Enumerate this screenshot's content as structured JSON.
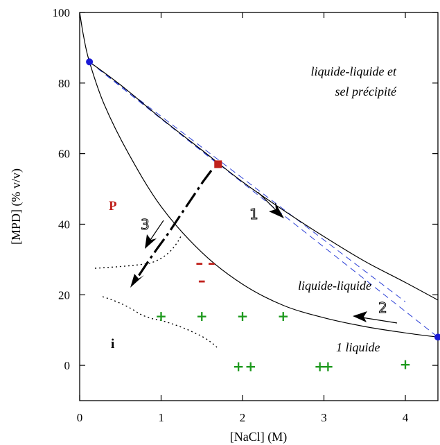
{
  "chart_data": {
    "type": "scatter",
    "xlabel": "[NaCl] (M)",
    "ylabel": "[MPD] (% v/v)",
    "xlim": [
      0,
      4.4
    ],
    "ylim": [
      -10,
      100
    ],
    "x_ticks": [
      "0",
      "1",
      "2",
      "3",
      "4"
    ],
    "y_ticks": [
      "0",
      "20",
      "40",
      "60",
      "80",
      "100"
    ],
    "curves": {
      "upper_binodal": [
        [
          0.12,
          86
        ],
        [
          0.5,
          79.5
        ],
        [
          1.0,
          70
        ],
        [
          1.5,
          61
        ],
        [
          2.0,
          52
        ],
        [
          2.5,
          44
        ],
        [
          3.0,
          36.5
        ],
        [
          3.5,
          29.5
        ],
        [
          4.0,
          23.5
        ],
        [
          4.4,
          18.5
        ]
      ],
      "lower_binodal": [
        [
          0,
          100
        ],
        [
          0.05,
          93
        ],
        [
          0.12,
          86
        ],
        [
          0.3,
          74
        ],
        [
          0.6,
          60
        ],
        [
          1.0,
          45
        ],
        [
          1.5,
          32
        ],
        [
          2.0,
          23
        ],
        [
          2.5,
          17
        ],
        [
          3.0,
          13.5
        ],
        [
          3.5,
          11
        ],
        [
          4.0,
          9.2
        ],
        [
          4.4,
          8
        ]
      ],
      "tie_lines": [
        [
          [
            0.12,
            86
          ],
          [
            4.4,
            8
          ]
        ],
        [
          [
            0.12,
            86
          ],
          [
            1.7,
            57
          ]
        ],
        [
          [
            0.12,
            86
          ],
          [
            4.0,
            18
          ]
        ]
      ]
    },
    "points": {
      "blue_circles": [
        [
          0.12,
          86
        ],
        [
          4.4,
          8
        ]
      ],
      "red_square": [
        1.7,
        57
      ]
    },
    "plus_markers": [
      [
        1.0,
        14
      ],
      [
        1.5,
        14
      ],
      [
        2.0,
        14
      ],
      [
        2.5,
        14
      ],
      [
        1.95,
        -0.3
      ],
      [
        2.1,
        -0.3
      ],
      [
        2.95,
        -0.3
      ],
      [
        3.05,
        -0.3
      ],
      [
        4.0,
        0.3
      ]
    ],
    "minus_markers": [
      [
        1.47,
        29
      ],
      [
        1.62,
        29
      ],
      [
        1.5,
        24
      ]
    ],
    "annotations": {
      "region_llsalt_line1": "liquide-liquide et",
      "region_llsalt_line2": "sel précipité",
      "region_ll": "liquide-liquide",
      "region_1l": "1 liquide",
      "label_P": "P",
      "label_i": "i",
      "arrow_1": "1",
      "arrow_2": "2",
      "arrow_3": "3"
    },
    "colors": {
      "curve": "#000000",
      "tie_line": "#2b3fd6",
      "point_circle": "#1a1ad6",
      "point_square": "#c0211c",
      "plus": "#1e9a1e",
      "minus": "#c0211c",
      "label_P": "#c0211c"
    }
  }
}
